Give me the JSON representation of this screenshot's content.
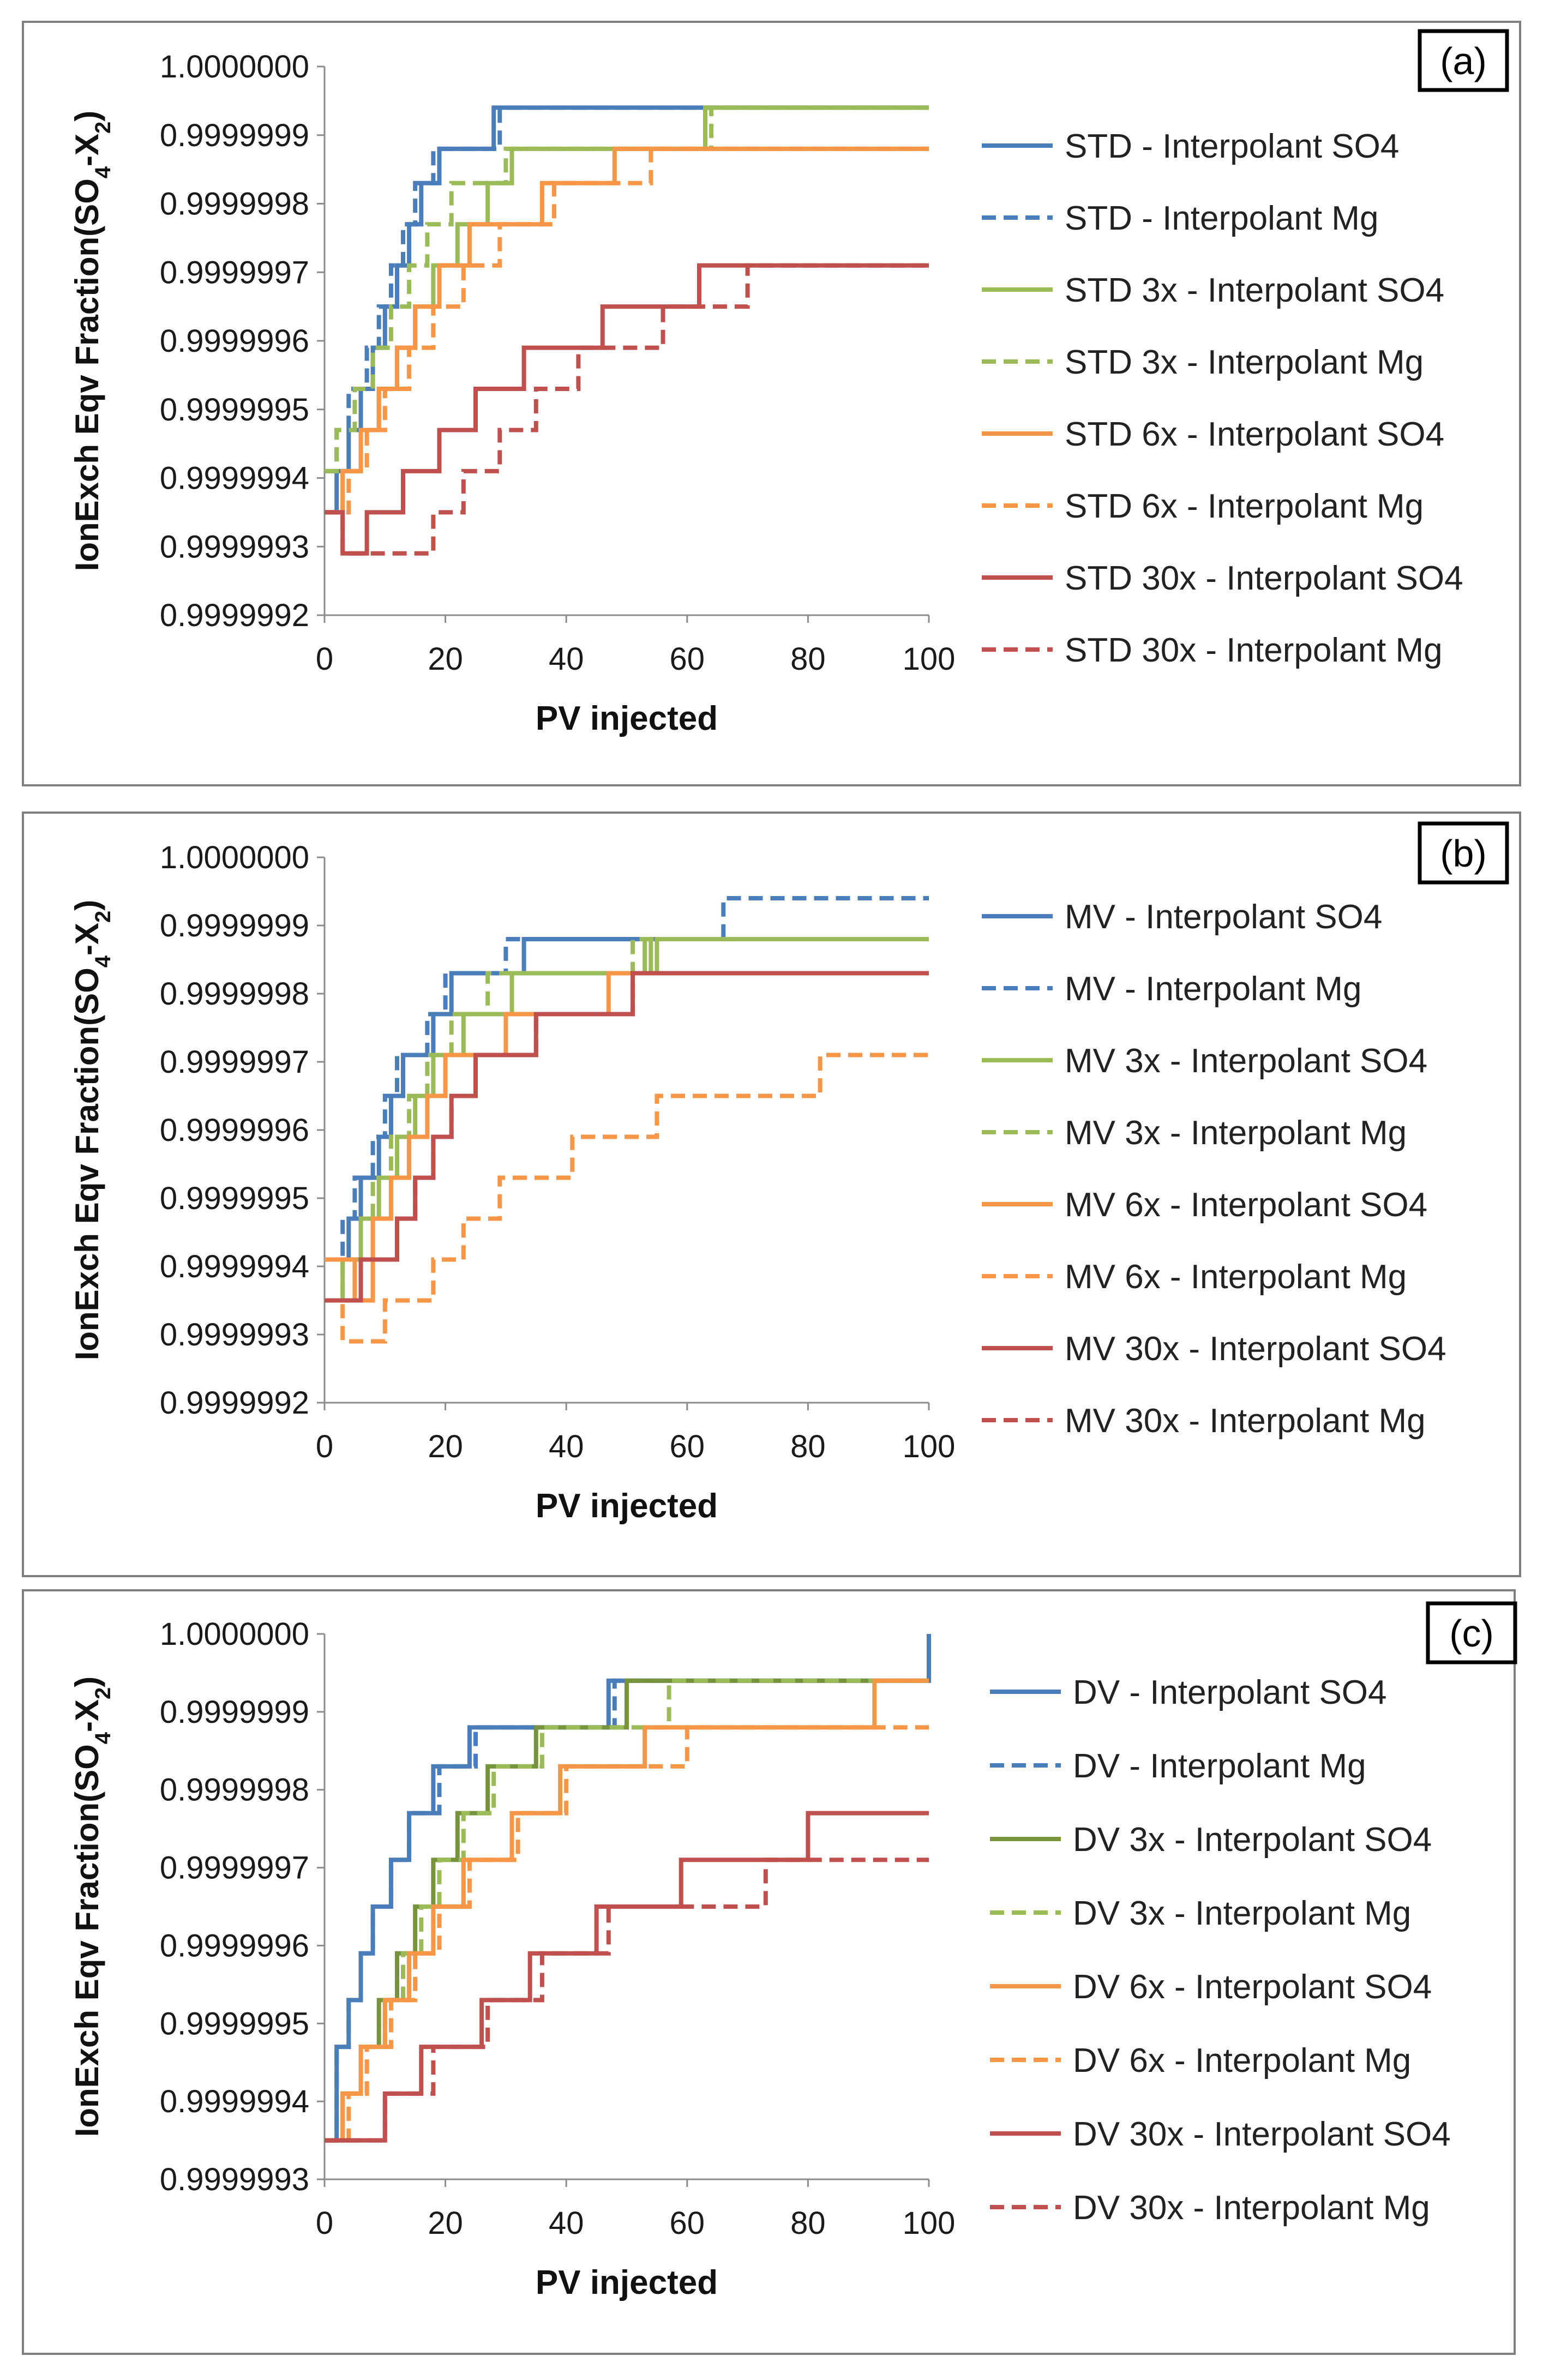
{
  "chart_data": [
    {
      "type": "line",
      "panel_label": "(a)",
      "title": "",
      "xlabel": "PV injected",
      "ylabel_parts": [
        "IonExch Eqv Fraction(SO",
        "4",
        "-X",
        "2",
        ")"
      ],
      "xlim": [
        0,
        100
      ],
      "ylim": [
        0.9999992,
        1.0
      ],
      "xticks": [
        "0",
        "20",
        "40",
        "60",
        "80",
        "100"
      ],
      "yticks": [
        "1.0000000",
        "0.9999999",
        "0.9999998",
        "0.9999997",
        "0.9999996",
        "0.9999995",
        "0.9999994",
        "0.9999993",
        "0.9999992"
      ],
      "grid": false,
      "legend_position": "right",
      "series": [
        {
          "name": "STD - Interpolant SO4",
          "color": "#4a7ebb",
          "dash": false,
          "x": [
            0,
            2,
            4,
            6,
            8,
            10,
            12,
            14,
            16,
            19,
            24,
            28,
            100
          ],
          "y": [
            0.99999935,
            0.99999941,
            0.99999947,
            0.99999953,
            0.99999959,
            0.99999965,
            0.99999971,
            0.99999977,
            0.99999983,
            0.99999988,
            0.99999988,
            0.99999994,
            0.99999994
          ]
        },
        {
          "name": "STD - Interpolant Mg",
          "color": "#4a7ebb",
          "dash": true,
          "x": [
            0,
            2,
            4,
            7,
            9,
            11,
            13,
            15,
            18,
            23,
            29,
            100
          ],
          "y": [
            0.99999941,
            0.99999947,
            0.99999953,
            0.99999959,
            0.99999965,
            0.99999971,
            0.99999977,
            0.99999983,
            0.99999988,
            0.99999988,
            0.99999994,
            0.99999994
          ]
        },
        {
          "name": "STD 3x - Interpolant SO4",
          "color": "#9bbb59",
          "dash": false,
          "x": [
            0,
            3,
            6,
            9,
            12,
            15,
            18,
            22,
            27,
            31,
            63,
            100
          ],
          "y": [
            0.99999935,
            0.99999941,
            0.99999947,
            0.99999953,
            0.99999959,
            0.99999965,
            0.99999971,
            0.99999977,
            0.99999983,
            0.99999988,
            0.99999994,
            0.99999994
          ]
        },
        {
          "name": "STD 3x - Interpolant Mg",
          "color": "#9bbb59",
          "dash": true,
          "x": [
            0,
            2,
            5,
            8,
            11,
            14,
            17,
            21,
            25,
            30,
            51,
            64,
            100
          ],
          "y": [
            0.99999941,
            0.99999947,
            0.99999953,
            0.99999959,
            0.99999965,
            0.99999971,
            0.99999977,
            0.99999983,
            0.99999983,
            0.99999988,
            0.99999988,
            0.99999994,
            0.99999994
          ]
        },
        {
          "name": "STD 6x - Interpolant SO4",
          "color": "#f79646",
          "dash": false,
          "x": [
            0,
            3,
            6,
            9,
            12,
            15,
            19,
            24,
            30,
            36,
            48,
            100
          ],
          "y": [
            0.99999935,
            0.99999941,
            0.99999947,
            0.99999953,
            0.99999959,
            0.99999965,
            0.99999971,
            0.99999977,
            0.99999977,
            0.99999983,
            0.99999988,
            0.99999988
          ]
        },
        {
          "name": "STD 6x - Interpolant Mg",
          "color": "#f79646",
          "dash": true,
          "x": [
            0,
            4,
            7,
            10,
            14,
            18,
            23,
            29,
            33,
            38,
            50,
            54,
            100
          ],
          "y": [
            0.99999935,
            0.99999941,
            0.99999947,
            0.99999953,
            0.99999959,
            0.99999965,
            0.99999971,
            0.99999977,
            0.99999977,
            0.99999983,
            0.99999983,
            0.99999988,
            0.99999988
          ]
        },
        {
          "name": "STD 30x - Interpolant SO4",
          "color": "#c0504d",
          "dash": false,
          "x": [
            0,
            3,
            7,
            13,
            19,
            25,
            33,
            41,
            46,
            52,
            62,
            100
          ],
          "y": [
            0.99999935,
            0.99999929,
            0.99999935,
            0.99999941,
            0.99999947,
            0.99999953,
            0.99999959,
            0.99999959,
            0.99999965,
            0.99999965,
            0.99999971,
            0.99999971
          ]
        },
        {
          "name": "STD 30x - Interpolant Mg",
          "color": "#c0504d",
          "dash": true,
          "x": [
            0,
            3,
            18,
            23,
            29,
            35,
            42,
            52,
            56,
            62,
            70,
            100
          ],
          "y": [
            0.99999935,
            0.99999929,
            0.99999935,
            0.99999941,
            0.99999947,
            0.99999953,
            0.99999959,
            0.99999959,
            0.99999965,
            0.99999965,
            0.99999971,
            0.99999971
          ]
        }
      ]
    },
    {
      "type": "line",
      "panel_label": "(b)",
      "title": "",
      "xlabel": "PV injected",
      "ylabel_parts": [
        "IonExch Eqv Fraction(SO",
        "4",
        "-X",
        "2",
        ")"
      ],
      "xlim": [
        0,
        100
      ],
      "ylim": [
        0.9999992,
        1.0
      ],
      "xticks": [
        "0",
        "20",
        "40",
        "60",
        "80",
        "100"
      ],
      "yticks": [
        "1.0000000",
        "0.9999999",
        "0.9999998",
        "0.9999997",
        "0.9999996",
        "0.9999995",
        "0.9999994",
        "0.9999993",
        "0.9999992"
      ],
      "grid": false,
      "legend_position": "right",
      "series": [
        {
          "name": "MV - Interpolant SO4",
          "color": "#4a7ebb",
          "dash": false,
          "x": [
            0,
            4,
            6,
            9,
            11,
            13,
            15,
            18,
            21,
            25,
            30,
            33,
            100
          ],
          "y": [
            0.99999941,
            0.99999947,
            0.99999953,
            0.99999959,
            0.99999965,
            0.99999971,
            0.99999971,
            0.99999977,
            0.99999983,
            0.99999983,
            0.99999983,
            0.99999988,
            0.99999988
          ]
        },
        {
          "name": "MV - Interpolant Mg",
          "color": "#4a7ebb",
          "dash": true,
          "x": [
            0,
            3,
            5,
            8,
            10,
            12,
            14,
            17,
            20,
            24,
            30,
            66,
            100
          ],
          "y": [
            0.99999941,
            0.99999947,
            0.99999953,
            0.99999959,
            0.99999965,
            0.99999971,
            0.99999971,
            0.99999977,
            0.99999983,
            0.99999983,
            0.99999988,
            0.99999994,
            0.99999994
          ]
        },
        {
          "name": "MV 3x - Interpolant SO4",
          "color": "#9bbb59",
          "dash": false,
          "x": [
            0,
            3,
            6,
            9,
            12,
            15,
            18,
            23,
            31,
            52,
            53,
            54,
            55,
            100
          ],
          "y": [
            0.99999935,
            0.99999941,
            0.99999947,
            0.99999953,
            0.99999959,
            0.99999965,
            0.99999971,
            0.99999977,
            0.99999983,
            0.99999983,
            0.99999988,
            0.99999983,
            0.99999988,
            0.99999988
          ]
        },
        {
          "name": "MV 3x - Interpolant Mg",
          "color": "#9bbb59",
          "dash": true,
          "x": [
            0,
            3,
            6,
            8,
            11,
            14,
            17,
            21,
            27,
            33,
            51,
            100
          ],
          "y": [
            0.99999935,
            0.99999941,
            0.99999947,
            0.99999953,
            0.99999959,
            0.99999965,
            0.99999971,
            0.99999977,
            0.99999983,
            0.99999983,
            0.99999988,
            0.99999988
          ]
        },
        {
          "name": "MV 6x - Interpolant SO4",
          "color": "#f79646",
          "dash": false,
          "x": [
            0,
            5,
            8,
            11,
            14,
            17,
            20,
            25,
            30,
            36,
            47,
            100
          ],
          "y": [
            0.99999941,
            0.99999935,
            0.99999947,
            0.99999953,
            0.99999959,
            0.99999965,
            0.99999971,
            0.99999971,
            0.99999977,
            0.99999977,
            0.99999983,
            0.99999983
          ]
        },
        {
          "name": "MV 6x - Interpolant Mg",
          "color": "#f79646",
          "dash": true,
          "x": [
            0,
            3,
            10,
            12,
            18,
            23,
            29,
            33,
            41,
            55,
            82,
            100
          ],
          "y": [
            0.99999935,
            0.99999929,
            0.99999935,
            0.99999935,
            0.99999941,
            0.99999947,
            0.99999953,
            0.99999953,
            0.99999959,
            0.99999965,
            0.99999971,
            0.99999971
          ]
        },
        {
          "name": "MV 30x - Interpolant SO4",
          "color": "#c0504d",
          "dash": false,
          "x": [
            0,
            6,
            12,
            15,
            18,
            21,
            25,
            30,
            35,
            40,
            51,
            100
          ],
          "y": [
            0.99999935,
            0.99999941,
            0.99999947,
            0.99999953,
            0.99999959,
            0.99999965,
            0.99999971,
            0.99999971,
            0.99999977,
            0.99999977,
            0.99999983,
            0.99999983
          ]
        },
        {
          "name": "MV 30x - Interpolant Mg",
          "color": "#c0504d",
          "dash": true,
          "x": [
            0,
            6,
            12,
            15,
            18,
            21,
            25,
            30,
            35,
            40,
            51,
            100
          ],
          "y": [
            0.99999935,
            0.99999941,
            0.99999947,
            0.99999953,
            0.99999959,
            0.99999965,
            0.99999971,
            0.99999971,
            0.99999977,
            0.99999977,
            0.99999983,
            0.99999983
          ]
        }
      ]
    },
    {
      "type": "line",
      "panel_label": "(c)",
      "title": "",
      "xlabel": "PV injected",
      "ylabel_parts": [
        "IonExch Eqv Fraction(SO",
        "4",
        "-X",
        "2",
        ")"
      ],
      "xlim": [
        0,
        100
      ],
      "ylim": [
        0.9999993,
        1.0
      ],
      "xticks": [
        "0",
        "20",
        "40",
        "60",
        "80",
        "100"
      ],
      "yticks": [
        "1.0000000",
        "0.9999999",
        "0.9999998",
        "0.9999997",
        "0.9999996",
        "0.9999995",
        "0.9999994",
        "0.9999993"
      ],
      "grid": false,
      "legend_position": "right",
      "series": [
        {
          "name": "DV - Interpolant SO4",
          "color": "#4a7ebb",
          "dash": false,
          "x": [
            0,
            2,
            4,
            6,
            8,
            11,
            14,
            18,
            24,
            47,
            100
          ],
          "y": [
            0.99999935,
            0.99999947,
            0.99999953,
            0.99999959,
            0.99999965,
            0.99999971,
            0.99999977,
            0.99999983,
            0.99999988,
            0.99999994,
            1.0
          ]
        },
        {
          "name": "DV - Interpolant Mg",
          "color": "#4a7ebb",
          "dash": true,
          "x": [
            0,
            2,
            4,
            6,
            8,
            11,
            14,
            19,
            25,
            48,
            100
          ],
          "y": [
            0.99999935,
            0.99999947,
            0.99999953,
            0.99999959,
            0.99999965,
            0.99999971,
            0.99999977,
            0.99999983,
            0.99999988,
            0.99999994,
            1.0
          ]
        },
        {
          "name": "DV 3x - Interpolant SO4",
          "color": "#77933c",
          "dash": false,
          "x": [
            0,
            3,
            6,
            9,
            12,
            15,
            18,
            22,
            27,
            35,
            50,
            100
          ],
          "y": [
            0.99999935,
            0.99999941,
            0.99999947,
            0.99999953,
            0.99999959,
            0.99999965,
            0.99999971,
            0.99999977,
            0.99999983,
            0.99999988,
            0.99999994,
            0.99999994
          ]
        },
        {
          "name": "DV 3x - Interpolant Mg",
          "color": "#9bbb59",
          "dash": true,
          "x": [
            0,
            3,
            7,
            10,
            13,
            16,
            19,
            23,
            28,
            36,
            57,
            100
          ],
          "y": [
            0.99999935,
            0.99999941,
            0.99999947,
            0.99999953,
            0.99999959,
            0.99999965,
            0.99999971,
            0.99999977,
            0.99999983,
            0.99999988,
            0.99999994,
            0.99999994
          ]
        },
        {
          "name": "DV 6x - Interpolant SO4",
          "color": "#f79646",
          "dash": false,
          "x": [
            0,
            3,
            6,
            10,
            14,
            18,
            23,
            31,
            39,
            53,
            91,
            100
          ],
          "y": [
            0.99999935,
            0.99999941,
            0.99999947,
            0.99999953,
            0.99999959,
            0.99999965,
            0.99999971,
            0.99999977,
            0.99999983,
            0.99999988,
            0.99999994,
            0.99999994
          ]
        },
        {
          "name": "DV 6x - Interpolant Mg",
          "color": "#f79646",
          "dash": true,
          "x": [
            0,
            4,
            7,
            11,
            15,
            19,
            24,
            32,
            40,
            60,
            100
          ],
          "y": [
            0.99999935,
            0.99999941,
            0.99999947,
            0.99999953,
            0.99999959,
            0.99999965,
            0.99999971,
            0.99999977,
            0.99999983,
            0.99999988,
            0.99999988
          ]
        },
        {
          "name": "DV 30x - Interpolant SO4",
          "color": "#c0504d",
          "dash": false,
          "x": [
            0,
            10,
            16,
            26,
            34,
            45,
            59,
            80,
            100
          ],
          "y": [
            0.99999935,
            0.99999941,
            0.99999947,
            0.99999953,
            0.99999959,
            0.99999965,
            0.99999971,
            0.99999977,
            0.99999977
          ]
        },
        {
          "name": "DV 30x - Interpolant Mg",
          "color": "#c0504d",
          "dash": true,
          "x": [
            0,
            10,
            18,
            27,
            36,
            47,
            60,
            73,
            100
          ],
          "y": [
            0.99999935,
            0.99999941,
            0.99999947,
            0.99999953,
            0.99999959,
            0.99999965,
            0.99999965,
            0.99999971,
            0.99999971
          ]
        }
      ]
    }
  ]
}
